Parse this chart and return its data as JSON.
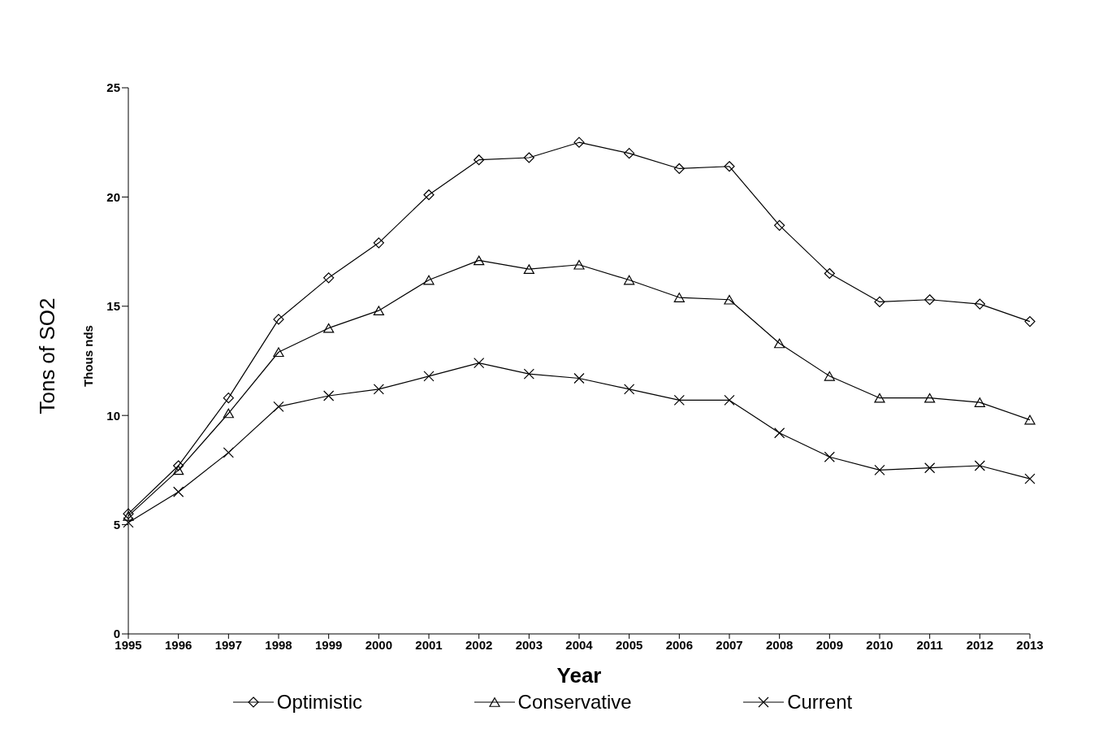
{
  "chart_data": {
    "type": "line",
    "xlabel": "Year",
    "ylabel": "Tons of SO2",
    "annotations": [
      "Thous nds"
    ],
    "categories": [
      "1995",
      "1996",
      "1997",
      "1998",
      "1999",
      "2000",
      "2001",
      "2002",
      "2003",
      "2004",
      "2005",
      "2006",
      "2007",
      "2008",
      "2009",
      "2010",
      "2011",
      "2012",
      "2013"
    ],
    "ylim": [
      0,
      25
    ],
    "yticks": [
      0,
      5,
      10,
      15,
      20,
      25
    ],
    "grid": false,
    "legend": "bottom",
    "series": [
      {
        "name": "Optimistic",
        "color": "#000000",
        "marker": "diamond",
        "values": [
          5.5,
          7.7,
          10.8,
          14.4,
          16.3,
          17.9,
          20.1,
          21.7,
          21.8,
          22.5,
          22.0,
          21.3,
          21.4,
          18.7,
          16.5,
          15.2,
          15.3,
          15.1,
          14.3
        ]
      },
      {
        "name": "Conservative",
        "color": "#000000",
        "marker": "triangle",
        "values": [
          5.4,
          7.5,
          10.1,
          12.9,
          14.0,
          14.8,
          16.2,
          17.1,
          16.7,
          16.9,
          16.2,
          15.4,
          15.3,
          13.3,
          11.8,
          10.8,
          10.8,
          10.6,
          9.8
        ]
      },
      {
        "name": "Current",
        "color": "#000000",
        "marker": "cross",
        "values": [
          5.1,
          6.5,
          8.3,
          10.4,
          10.9,
          11.2,
          11.8,
          12.4,
          11.9,
          11.7,
          11.2,
          10.7,
          10.7,
          9.2,
          8.1,
          7.5,
          7.6,
          7.7,
          7.1
        ]
      }
    ]
  }
}
